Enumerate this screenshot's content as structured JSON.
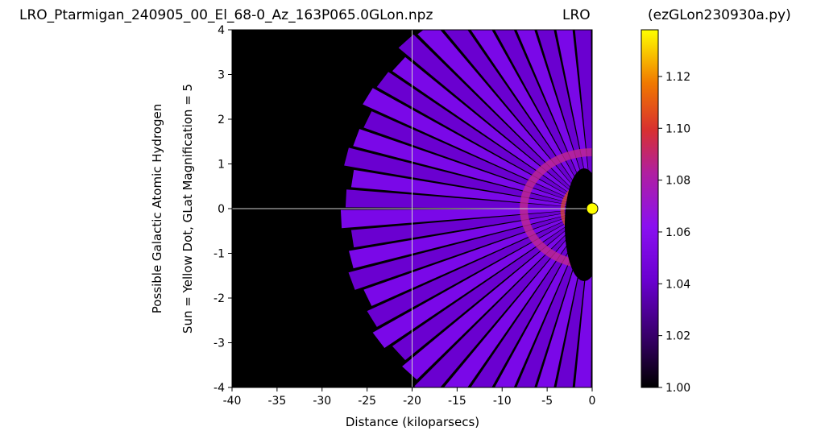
{
  "header": {
    "left": "LRO_Ptarmigan_240905_00_El_68-0_Az_163P065.0GLon.npz",
    "middle": "LRO",
    "right": "(ezGLon230930a.py)"
  },
  "chart_data": {
    "type": "heatmap",
    "xlabel": "Distance (kiloparsecs)",
    "ylabel_line1": "Possible Galactic Atomic Hydrogen",
    "ylabel_line2": "Sun = Yellow Dot, GLat Magnification = 5",
    "xlim": [
      -40,
      0
    ],
    "ylim": [
      -4,
      4
    ],
    "x_ticks": [
      "-40",
      "-35",
      "-30",
      "-25",
      "-20",
      "-15",
      "-10",
      "-5",
      "0"
    ],
    "y_ticks": [
      "4",
      "3",
      "2",
      "1",
      "0",
      "-1",
      "-2",
      "-3",
      "-4"
    ],
    "colorbar": {
      "min": 1.0,
      "max": 1.138,
      "ticks": [
        "1.00",
        "1.02",
        "1.04",
        "1.06",
        "1.08",
        "1.10",
        "1.12"
      ],
      "colormap": "gnuplot"
    },
    "reference_lines": {
      "vertical_x": -20,
      "horizontal_y": 0
    },
    "sun_marker": {
      "x": 0,
      "y": 0,
      "color": "#ffff00"
    },
    "background_color": "#000000"
  }
}
